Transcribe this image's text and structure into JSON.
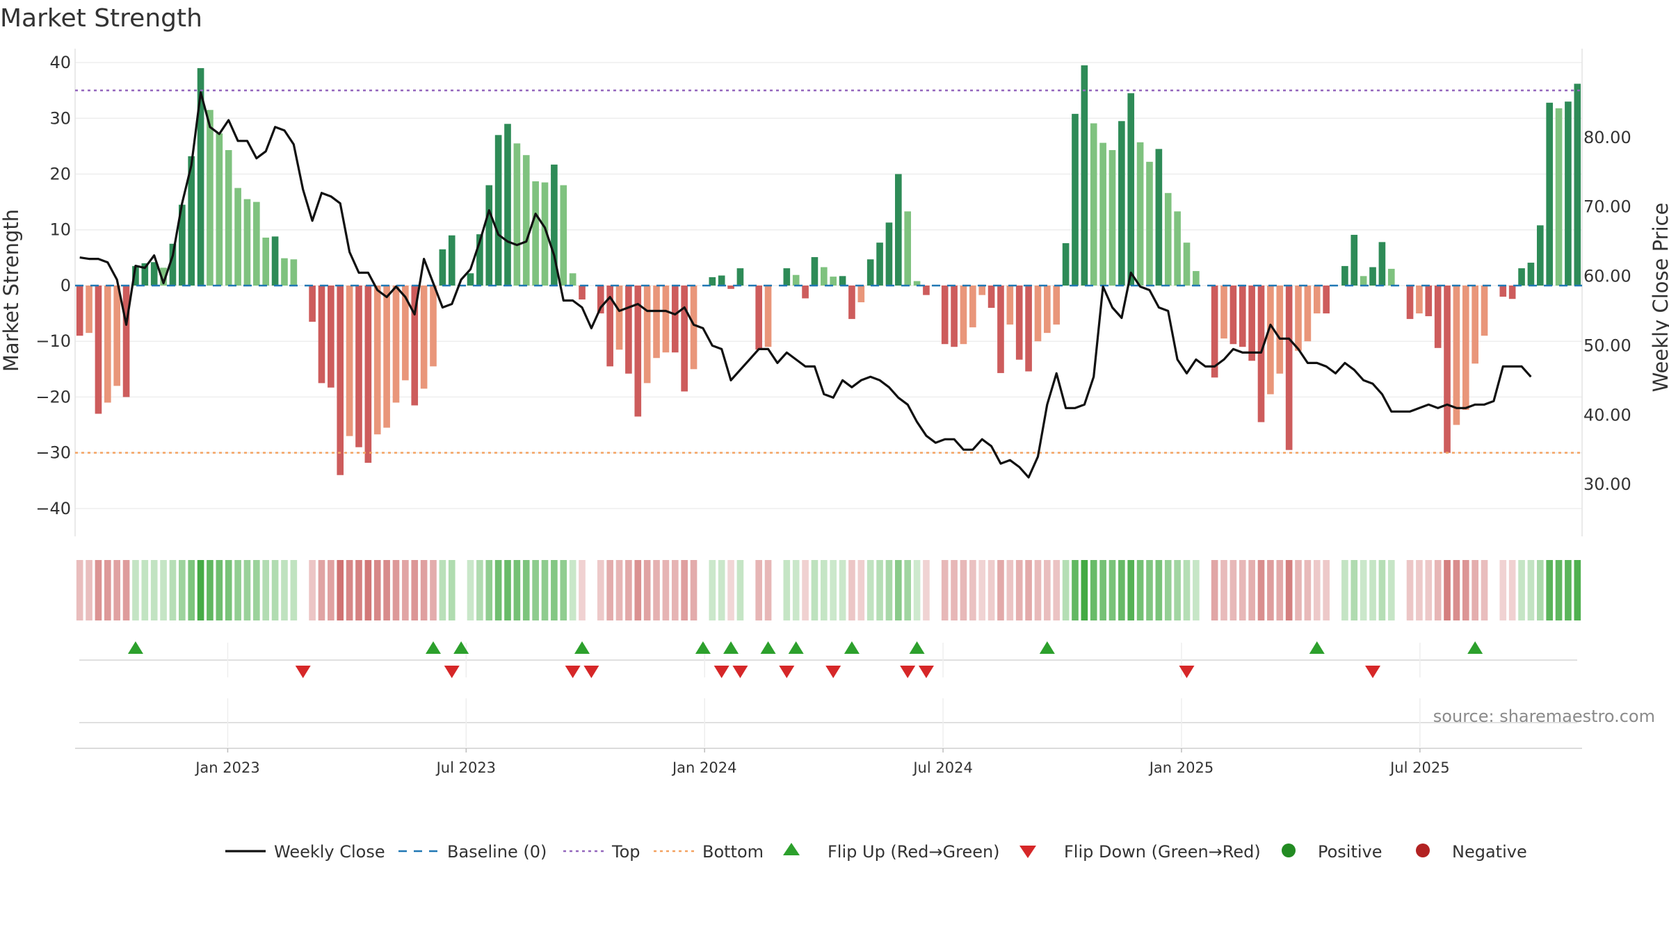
{
  "chart_data": {
    "type": "bar",
    "title": "Market Strength",
    "ylabel": "Market Strength",
    "y2label": "Weekly Close Price",
    "ylim": [
      -45,
      42
    ],
    "y2lim": [
      22.5,
      92.4
    ],
    "yticks": [
      40,
      30,
      20,
      10,
      0,
      -10,
      -20,
      -30,
      -40
    ],
    "yticklabels": [
      "40",
      "30",
      "20",
      "10",
      "0",
      "−10",
      "−20",
      "−30",
      "−40"
    ],
    "y2ticks": [
      80,
      70,
      60,
      50,
      40,
      30
    ],
    "y2ticklabels": [
      "80.00",
      "70.00",
      "60.00",
      "50.00",
      "40.00",
      "30.00"
    ],
    "x_range": [
      2022.68,
      2025.84
    ],
    "x_dates": [
      {
        "label": "Jan 2023",
        "value": 2023.0
      },
      {
        "label": "Jul 2023",
        "value": 2023.5
      },
      {
        "label": "Jan 2024",
        "value": 2024.0
      },
      {
        "label": "Jul 2024",
        "value": 2024.5
      },
      {
        "label": "Jan 2025",
        "value": 2025.0
      },
      {
        "label": "Jul 2025",
        "value": 2025.5
      }
    ],
    "top_line": 35,
    "bottom_line": -30,
    "strength": [
      -9,
      -8.5,
      -23,
      -21,
      -18,
      -20,
      3.5,
      4,
      4.2,
      3.2,
      7.5,
      14.5,
      23.2,
      39,
      31.5,
      27.3,
      24.3,
      17.5,
      15.5,
      15,
      8.6,
      8.8,
      4.9,
      4.7,
      0,
      -6.5,
      -17.5,
      -18.3,
      -34,
      -27,
      -29,
      -31.8,
      -26.7,
      -25.5,
      -21,
      -17,
      -21.5,
      -18.5,
      -14.5,
      6.5,
      9,
      0,
      2.2,
      9.2,
      18,
      27,
      29,
      25.5,
      23.4,
      18.7,
      18.5,
      21.7,
      18,
      2.2,
      -2.5,
      0,
      -5,
      -14.5,
      -11.5,
      -15.8,
      -23.5,
      -17.5,
      -13,
      -12,
      -12,
      -19,
      -15,
      0,
      1.5,
      1.8,
      -0.6,
      3.1,
      0,
      -11.5,
      -11,
      0,
      3.1,
      1.9,
      -2.3,
      5.1,
      3.3,
      1.6,
      1.7,
      -6,
      -3,
      4.7,
      7.7,
      11.3,
      20,
      13.3,
      0.8,
      -1.7,
      0,
      -10.5,
      -11,
      -10.5,
      -7.5,
      -1.7,
      -4,
      -15.7,
      -7,
      -13.3,
      -15.4,
      -10,
      -8.5,
      -7,
      7.6,
      30.8,
      39.5,
      29.1,
      25.6,
      24.3,
      29.5,
      34.5,
      25.7,
      22.2,
      24.5,
      16.6,
      13.3,
      7.7,
      2.6,
      0,
      -16.5,
      -9.5,
      -10.5,
      -11,
      -13.5,
      -24.5,
      -19.5,
      -15.8,
      -29.5,
      -11.7,
      -10,
      -5,
      -5,
      0,
      3.5,
      9.1,
      1.7,
      3.3,
      7.8,
      3,
      0,
      -6,
      -5,
      -5.5,
      -11.2,
      -30,
      -25,
      -22.3,
      -14,
      -9,
      0,
      -2,
      -2.4,
      3.1,
      4.1,
      10.8,
      32.8,
      31.8,
      33,
      36.2
    ],
    "price": [
      62.7,
      62.5,
      62.5,
      62.0,
      59.5,
      53.0,
      61.5,
      61.2,
      63.0,
      59.0,
      63.0,
      70.5,
      76.0,
      86.5,
      81.5,
      80.5,
      82.5,
      79.5,
      79.5,
      77.0,
      78.0,
      81.5,
      81.0,
      79.0,
      72.5,
      68.0,
      72.0,
      71.5,
      70.5,
      63.5,
      60.5,
      60.5,
      58.0,
      57.0,
      58.5,
      57.0,
      54.5,
      62.5,
      59.0,
      55.5,
      56.0,
      59.5,
      61.0,
      65.0,
      69.5,
      66.0,
      65.0,
      64.5,
      65.0,
      69.0,
      67.0,
      63.0,
      56.5,
      56.5,
      55.5,
      52.5,
      55.5,
      57.0,
      55.0,
      55.5,
      56.0,
      55.0,
      55.0,
      55.0,
      54.5,
      55.5,
      53.0,
      52.5,
      50.0,
      49.5,
      45.0,
      46.5,
      48.0,
      49.5,
      49.5,
      47.5,
      49.0,
      48.0,
      47.0,
      47.0,
      43.0,
      42.5,
      45.0,
      44.0,
      45.0,
      45.5,
      45.0,
      44.0,
      42.5,
      41.5,
      39.0,
      37.0,
      36.0,
      36.5,
      36.5,
      35.0,
      35.0,
      36.5,
      35.5,
      33.0,
      33.5,
      32.5,
      31.0,
      34.0,
      41.5,
      46.0,
      41.0,
      41.0,
      41.5,
      45.5,
      58.5,
      55.5,
      54.0,
      60.5,
      58.5,
      58.0,
      55.5,
      55.0,
      48.0,
      46.0,
      48.0,
      47.0,
      47.0,
      48.0,
      49.5,
      49.0,
      49.0,
      49.0,
      53.0,
      51.0,
      51.0,
      49.5,
      47.5,
      47.5,
      47.0,
      46.0,
      47.5,
      46.5,
      45.0,
      44.5,
      43.0,
      40.5,
      40.5,
      40.5,
      41.0,
      41.5,
      41.0,
      41.5,
      41.0,
      41.0,
      41.5,
      41.5,
      42.0,
      47.0,
      47.0,
      47.0,
      45.5
    ],
    "flip_up_weeks": [
      6,
      38,
      41,
      54,
      67,
      70,
      74,
      77,
      83,
      90,
      104,
      133,
      150
    ],
    "flip_down_weeks": [
      24,
      40,
      53,
      55,
      69,
      71,
      76,
      81,
      89,
      91,
      119,
      139
    ],
    "legend": [
      {
        "label": "Weekly Close",
        "kind": "line"
      },
      {
        "label": "Baseline (0)",
        "kind": "dash"
      },
      {
        "label": "Top",
        "kind": "dot-purple"
      },
      {
        "label": "Bottom",
        "kind": "dot-orange"
      },
      {
        "label": "Flip Up (Red→Green)",
        "kind": "tri-up"
      },
      {
        "label": "Flip Down (Green→Red)",
        "kind": "tri-down"
      },
      {
        "label": "Positive",
        "kind": "circle-green"
      },
      {
        "label": "Negative",
        "kind": "circle-red"
      }
    ]
  },
  "source": "source: sharemaestro.com",
  "colors": {
    "pos_dark": "#2e8b57",
    "pos_light": "#7fc27f",
    "neg_dark": "#cd5c5c",
    "neg_light": "#e9967a",
    "top_line": "#9467bd",
    "bottom_line": "#f4a261",
    "baseline": "#1f77b4",
    "flip_up": "#2ca02c",
    "flip_down": "#d62728",
    "positive_dot": "#228b22",
    "negative_dot": "#b22222",
    "price_line": "#111111"
  }
}
